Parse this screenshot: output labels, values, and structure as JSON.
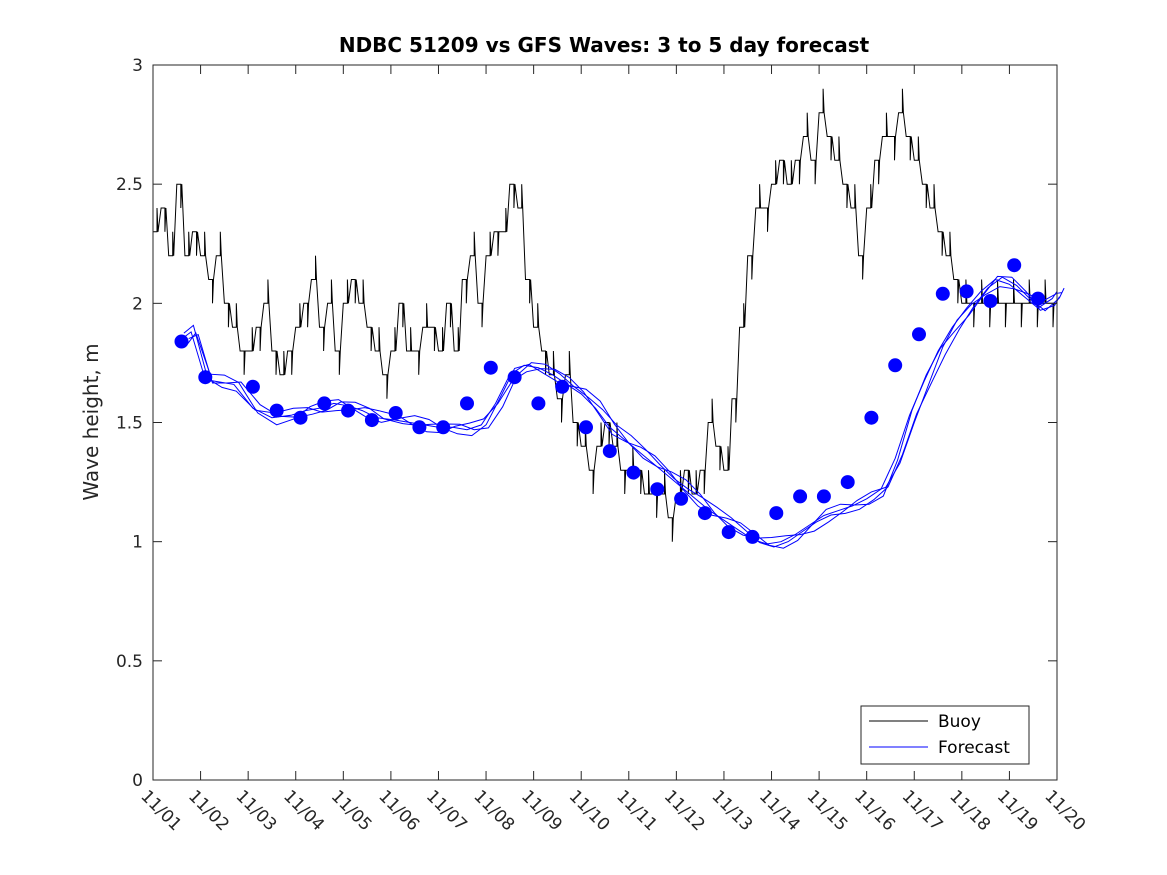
{
  "chart_data": {
    "type": "line",
    "title": "NDBC 51209 vs GFS Waves: 3 to 5 day forecast",
    "xlabel": "",
    "ylabel": "Wave height, m",
    "xlim": [
      0,
      19
    ],
    "ylim": [
      0,
      3
    ],
    "grid": false,
    "legend_position": "bottom-right",
    "x_tick_labels": [
      "11/01",
      "11/02",
      "11/03",
      "11/04",
      "11/05",
      "11/06",
      "11/07",
      "11/08",
      "11/09",
      "11/10",
      "11/11",
      "11/12",
      "11/13",
      "11/14",
      "11/15",
      "11/16",
      "11/17",
      "11/18",
      "11/19",
      "11/20"
    ],
    "y_ticks": [
      0,
      0.5,
      1,
      1.5,
      2,
      2.5,
      3
    ],
    "y_tick_labels": [
      "0",
      "0.5",
      "1",
      "1.5",
      "2",
      "2.5",
      "3"
    ],
    "series": [
      {
        "name": "Buoy",
        "color": "#000000",
        "x": [
          0,
          0.17,
          0.33,
          0.5,
          0.67,
          0.83,
          1,
          1.17,
          1.33,
          1.5,
          1.67,
          1.83,
          2,
          2.17,
          2.33,
          2.5,
          2.67,
          2.83,
          3,
          3.17,
          3.33,
          3.5,
          3.67,
          3.83,
          4,
          4.17,
          4.33,
          4.5,
          4.67,
          4.83,
          5,
          5.17,
          5.33,
          5.5,
          5.67,
          5.83,
          6,
          6.17,
          6.33,
          6.5,
          6.67,
          6.83,
          7,
          7.17,
          7.33,
          7.5,
          7.67,
          7.83,
          8,
          8.17,
          8.33,
          8.5,
          8.67,
          8.83,
          9,
          9.17,
          9.33,
          9.5,
          9.67,
          9.83,
          10,
          10.17,
          10.33,
          10.5,
          10.67,
          10.83,
          11,
          11.17,
          11.33,
          11.5,
          11.67,
          11.83,
          12,
          12.17,
          12.33,
          12.5,
          12.67,
          12.83,
          13,
          13.17,
          13.33,
          13.5,
          13.67,
          13.83,
          14,
          14.17,
          14.33,
          14.5,
          14.67,
          14.83,
          15,
          15.17,
          15.33,
          15.5,
          15.67,
          15.83,
          16,
          16.17,
          16.33,
          16.5,
          16.67,
          16.83,
          17,
          17.17,
          17.33,
          17.5,
          17.67,
          17.83,
          18,
          18.17,
          18.33,
          18.5,
          18.67,
          18.83,
          19
        ],
        "y": [
          2.3,
          2.4,
          2.2,
          2.5,
          2.2,
          2.3,
          2.2,
          2.1,
          2.2,
          2.0,
          1.9,
          1.8,
          1.8,
          1.9,
          2.0,
          1.8,
          1.7,
          1.8,
          1.9,
          2.0,
          2.1,
          1.9,
          2.0,
          1.8,
          2.0,
          2.1,
          2.0,
          1.9,
          1.8,
          1.7,
          1.8,
          2.0,
          1.8,
          1.8,
          1.9,
          1.9,
          1.8,
          2.0,
          1.8,
          2.1,
          2.2,
          2.0,
          2.2,
          2.3,
          2.3,
          2.5,
          2.4,
          2.1,
          1.9,
          1.8,
          1.7,
          1.6,
          1.7,
          1.5,
          1.4,
          1.3,
          1.4,
          1.5,
          1.4,
          1.3,
          1.3,
          1.3,
          1.2,
          1.2,
          1.2,
          1.1,
          1.2,
          1.3,
          1.2,
          1.3,
          1.5,
          1.4,
          1.3,
          1.6,
          1.9,
          2.2,
          2.4,
          2.4,
          2.5,
          2.6,
          2.5,
          2.6,
          2.7,
          2.6,
          2.8,
          2.7,
          2.6,
          2.5,
          2.4,
          2.2,
          2.4,
          2.6,
          2.7,
          2.7,
          2.8,
          2.7,
          2.6,
          2.5,
          2.4,
          2.3,
          2.2,
          2.1,
          2.0,
          2.0,
          2.0,
          2.0,
          2.0,
          2.0,
          2.0,
          2.0,
          2.0,
          2.0,
          2.0,
          2.0,
          2.0
        ]
      },
      {
        "name": "Forecast",
        "color": "#0000ff",
        "x": [
          0.6,
          0.8,
          1.1,
          1.4,
          1.7,
          2.1,
          2.5,
          2.9,
          3.2,
          3.5,
          3.8,
          4.1,
          4.4,
          4.7,
          5.1,
          5.4,
          5.7,
          6.0,
          6.3,
          6.6,
          6.9,
          7.2,
          7.5,
          7.8,
          8.1,
          8.4,
          8.7,
          9.0,
          9.3,
          9.6,
          9.9,
          10.2,
          10.5,
          10.8,
          11.1,
          11.4,
          11.7,
          12.0,
          12.3,
          12.6,
          12.9,
          13.2,
          13.5,
          13.8,
          14.1,
          14.4,
          14.7,
          15.0,
          15.3,
          15.6,
          15.9,
          16.2,
          16.5,
          16.8,
          17.1,
          17.4,
          17.7,
          18.0,
          18.3,
          18.6,
          18.9,
          19.0
        ],
        "y": [
          1.85,
          1.88,
          1.68,
          1.67,
          1.66,
          1.56,
          1.52,
          1.53,
          1.55,
          1.56,
          1.58,
          1.57,
          1.55,
          1.52,
          1.51,
          1.5,
          1.49,
          1.48,
          1.48,
          1.47,
          1.49,
          1.58,
          1.7,
          1.74,
          1.73,
          1.7,
          1.66,
          1.62,
          1.56,
          1.48,
          1.43,
          1.38,
          1.33,
          1.28,
          1.23,
          1.18,
          1.13,
          1.09,
          1.05,
          1.01,
          0.99,
          1.0,
          1.03,
          1.07,
          1.11,
          1.13,
          1.15,
          1.18,
          1.22,
          1.35,
          1.53,
          1.67,
          1.8,
          1.9,
          1.98,
          2.05,
          2.1,
          2.08,
          2.03,
          1.98,
          2.02,
          2.05
        ]
      }
    ],
    "forecast_markers": {
      "name": "Forecast",
      "x": [
        0.6,
        1.1,
        2.1,
        2.6,
        3.1,
        3.6,
        4.1,
        4.6,
        5.1,
        5.6,
        6.1,
        6.6,
        7.1,
        7.6,
        8.1,
        8.6,
        9.1,
        9.6,
        10.1,
        10.6,
        11.1,
        11.6,
        12.1,
        12.6,
        13.1,
        13.6,
        14.1,
        14.6,
        15.1,
        15.6,
        16.1,
        16.6,
        17.1,
        17.6,
        18.1,
        18.6
      ],
      "y": [
        1.84,
        1.69,
        1.65,
        1.55,
        1.52,
        1.58,
        1.55,
        1.51,
        1.54,
        1.48,
        1.48,
        1.58,
        1.73,
        1.69,
        1.58,
        1.65,
        1.48,
        1.38,
        1.29,
        1.22,
        1.18,
        1.12,
        1.04,
        1.02,
        1.12,
        1.19,
        1.19,
        1.25,
        1.52,
        1.74,
        1.87,
        2.04,
        2.05,
        2.01,
        2.16,
        2.02
      ]
    },
    "legend": [
      "Buoy",
      "Forecast"
    ]
  }
}
